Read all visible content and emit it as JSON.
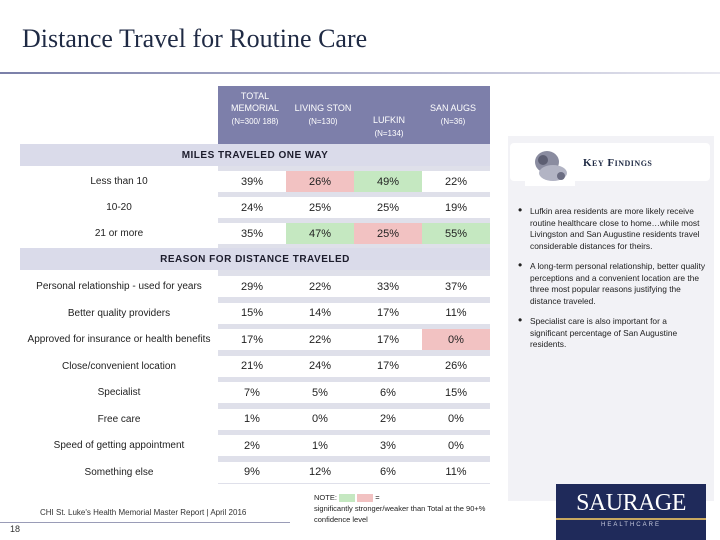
{
  "title": "Distance Travel for Routine Care",
  "columns": [
    {
      "name": "TOTAL MEMORIAL",
      "n": "(N=300/ 188)"
    },
    {
      "name": "LIVING STON",
      "n": "(N=130)"
    },
    {
      "name": "LUFKIN",
      "n": "(N=134)"
    },
    {
      "name": "SAN AUGS",
      "n": "(N=36)"
    }
  ],
  "sections": {
    "miles": "MILES TRAVELED ONE WAY",
    "reason": "REASON FOR DISTANCE TRAVELED"
  },
  "miles_rows": [
    {
      "label": "Less than 10",
      "values": [
        "39%",
        "26%",
        "49%",
        "22%"
      ],
      "colors": [
        "white",
        "pink",
        "green",
        "white"
      ]
    },
    {
      "label": "10-20",
      "values": [
        "24%",
        "25%",
        "25%",
        "19%"
      ],
      "colors": [
        "white",
        "white",
        "white",
        "white"
      ]
    },
    {
      "label": "21 or more",
      "values": [
        "35%",
        "47%",
        "25%",
        "55%"
      ],
      "colors": [
        "white",
        "green",
        "pink",
        "green"
      ]
    }
  ],
  "reason_rows": [
    {
      "label": "Personal relationship - used for years",
      "values": [
        "29%",
        "22%",
        "33%",
        "37%"
      ],
      "colors": [
        "white",
        "white",
        "white",
        "white"
      ]
    },
    {
      "label": "Better quality providers",
      "values": [
        "15%",
        "14%",
        "17%",
        "11%"
      ],
      "colors": [
        "white",
        "white",
        "white",
        "white"
      ]
    },
    {
      "label": "Approved for insurance or health benefits",
      "values": [
        "17%",
        "22%",
        "17%",
        "0%"
      ],
      "colors": [
        "white",
        "white",
        "white",
        "pink"
      ]
    },
    {
      "label": "Close/convenient location",
      "values": [
        "21%",
        "24%",
        "17%",
        "26%"
      ],
      "colors": [
        "white",
        "white",
        "white",
        "white"
      ]
    },
    {
      "label": "Specialist",
      "values": [
        "7%",
        "5%",
        "6%",
        "15%"
      ],
      "colors": [
        "white",
        "white",
        "white",
        "white"
      ]
    },
    {
      "label": "Free care",
      "values": [
        "1%",
        "0%",
        "2%",
        "0%"
      ],
      "colors": [
        "white",
        "white",
        "white",
        "white"
      ]
    },
    {
      "label": "Speed of getting appointment",
      "values": [
        "2%",
        "1%",
        "3%",
        "0%"
      ],
      "colors": [
        "white",
        "white",
        "white",
        "white"
      ]
    },
    {
      "label": "Something else",
      "values": [
        "9%",
        "12%",
        "6%",
        "11%"
      ],
      "colors": [
        "white",
        "white",
        "white",
        "white"
      ]
    }
  ],
  "key_findings": {
    "title": "Key Findings",
    "bullets": [
      "Lufkin area residents are more likely receive routine healthcare close to home…while most Livingston and San Augustine residents travel considerable distances for theirs.",
      "A long-term personal relationship, better quality perceptions and a convenient location are the three most popular reasons justifying the distance traveled.",
      "Specialist care is also important for a significant percentage of San Augustine residents."
    ]
  },
  "note": {
    "prefix": "NOTE:",
    "mid": "=",
    "text": "significantly stronger/weaker than Total at the 90+% confidence level"
  },
  "footer": "CHI St. Luke's Health Memorial Master Report | April 2016",
  "page_number": "18",
  "logo": {
    "main": "SAURAGE",
    "sub": "HEALTHCARE"
  },
  "colors": {
    "green": "#c5e8c1",
    "pink": "#f2c2c2",
    "header": "#7d7faa"
  }
}
